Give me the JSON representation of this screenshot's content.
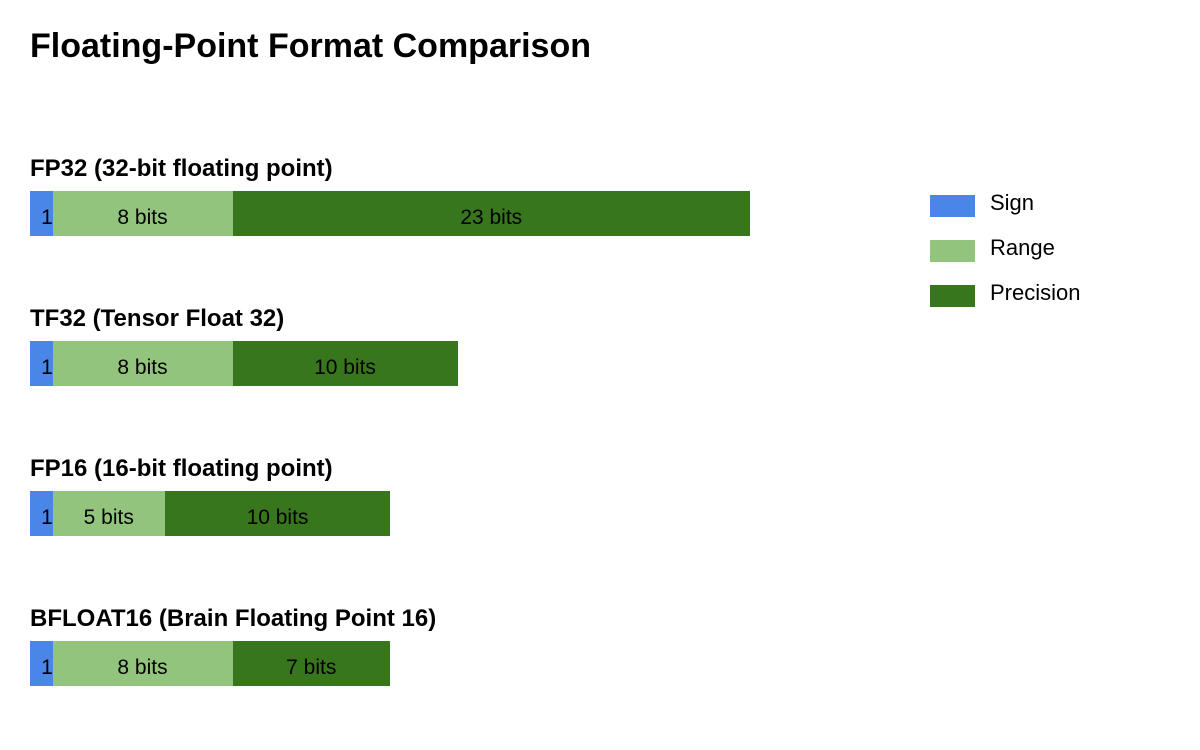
{
  "title": "Floating-Point Format Comparison",
  "colors": {
    "sign": "#4a86e8",
    "range": "#93c47d",
    "precision": "#38761d"
  },
  "legend": [
    {
      "key": "sign",
      "label": "Sign"
    },
    {
      "key": "range",
      "label": "Range"
    },
    {
      "key": "precision",
      "label": "Precision"
    }
  ],
  "formats": [
    {
      "title": "FP32 (32-bit floating point)",
      "sign_bits": 1,
      "range_bits": 8,
      "precision_bits": 23,
      "labels": {
        "sign": "1",
        "range": "8 bits",
        "precision": "23 bits"
      }
    },
    {
      "title": "TF32 (Tensor Float 32)",
      "sign_bits": 1,
      "range_bits": 8,
      "precision_bits": 10,
      "labels": {
        "sign": "1",
        "range": "8 bits",
        "precision": "10 bits"
      }
    },
    {
      "title": "FP16 (16-bit floating point)",
      "sign_bits": 1,
      "range_bits": 5,
      "precision_bits": 10,
      "labels": {
        "sign": "1",
        "range": "5 bits",
        "precision": "10 bits"
      }
    },
    {
      "title": "BFLOAT16 (Brain Floating Point 16)",
      "sign_bits": 1,
      "range_bits": 8,
      "precision_bits": 7,
      "labels": {
        "sign": "1",
        "range": "8 bits",
        "precision": "7 bits"
      }
    }
  ]
}
